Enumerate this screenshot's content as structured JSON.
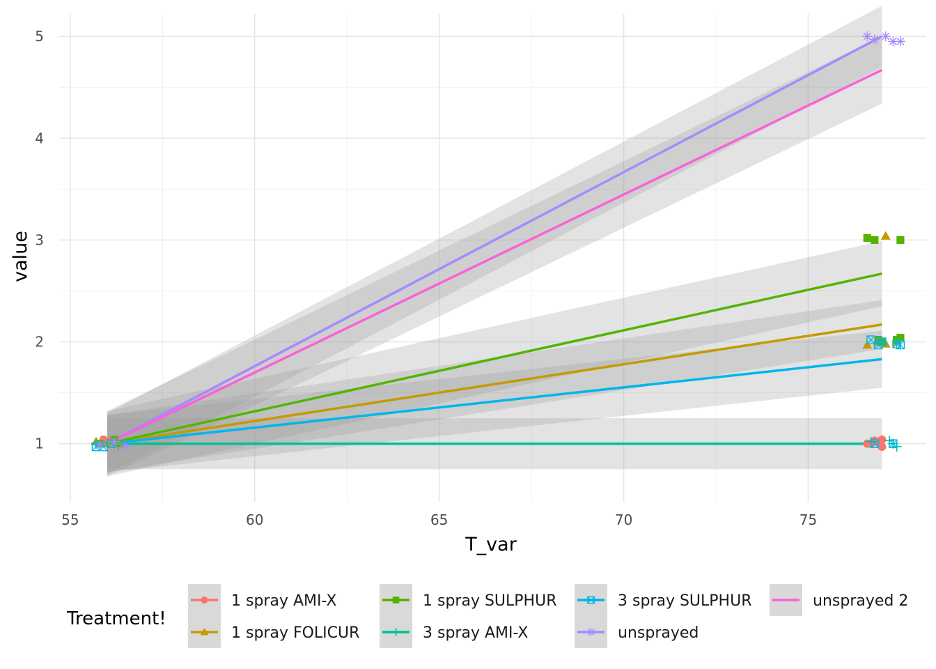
{
  "chart_data": {
    "type": "line",
    "xlabel": "T_var",
    "ylabel": "value",
    "xlim": [
      54.7,
      78.2
    ],
    "ylim": [
      0.43,
      5.22
    ],
    "x_ticks": [
      "55",
      "60",
      "65",
      "70",
      "75"
    ],
    "y_ticks": [
      "1",
      "2",
      "3",
      "4",
      "5"
    ],
    "grid": true,
    "legend": {
      "title": "Treatment!",
      "position": "bottom"
    },
    "fit_x": [
      56,
      77
    ],
    "series": [
      {
        "name": "1 spray AMI-X",
        "color": "#F8766D",
        "marker": "circle",
        "fit": [
          1.0,
          1.0
        ],
        "band_lo": [
          0.75,
          0.75
        ],
        "band_hi": [
          1.25,
          1.25
        ],
        "points": [
          [
            55.9,
            1.04
          ],
          [
            56.1,
            1.03
          ],
          [
            76.6,
            1.0
          ],
          [
            76.7,
            1.0
          ],
          [
            76.8,
            1.03
          ],
          [
            76.9,
            1.01
          ],
          [
            77.0,
            0.97
          ],
          [
            77.0,
            1.04
          ]
        ]
      },
      {
        "name": "1 spray FOLICUR",
        "color": "#C49A00",
        "marker": "triangle",
        "fit": [
          1.0,
          2.17
        ],
        "band_lo": [
          0.72,
          1.93
        ],
        "band_hi": [
          1.28,
          2.41
        ],
        "points": [
          [
            55.7,
            1.02
          ],
          [
            56.0,
            1.0
          ],
          [
            56.3,
            1.0
          ],
          [
            76.6,
            1.97
          ],
          [
            76.9,
            2.0
          ],
          [
            77.1,
            3.04
          ],
          [
            77.1,
            1.98
          ],
          [
            77.4,
            2.0
          ]
        ]
      },
      {
        "name": "1 spray SULPHUR",
        "color": "#53B400",
        "marker": "square",
        "fit": [
          1.0,
          2.67
        ],
        "band_lo": [
          0.68,
          2.35
        ],
        "band_hi": [
          1.32,
          2.99
        ],
        "points": [
          [
            55.8,
            1.0
          ],
          [
            56.2,
            1.04
          ],
          [
            76.6,
            3.02
          ],
          [
            76.8,
            3.0
          ],
          [
            76.9,
            2.02
          ],
          [
            77.0,
            2.0
          ],
          [
            77.5,
            3.0
          ],
          [
            77.5,
            2.04
          ],
          [
            77.4,
            2.02
          ]
        ]
      },
      {
        "name": "3 spray AMI-X",
        "color": "#00C094",
        "marker": "plus",
        "fit": [
          1.0,
          1.0
        ],
        "band_lo": [
          1.0,
          1.0
        ],
        "band_hi": [
          1.0,
          1.0
        ],
        "points": [
          [
            55.7,
            1.0
          ],
          [
            56.3,
            0.98
          ],
          [
            76.7,
            1.02
          ],
          [
            77.2,
            1.03
          ],
          [
            77.4,
            0.97
          ],
          [
            77.3,
            1.0
          ]
        ]
      },
      {
        "name": "3 spray SULPHUR",
        "color": "#00B6EB",
        "marker": "square-x",
        "fit": [
          1.0,
          1.83
        ],
        "band_lo": [
          0.72,
          1.55
        ],
        "band_hi": [
          1.28,
          2.11
        ],
        "points": [
          [
            55.7,
            0.97
          ],
          [
            55.9,
            0.97
          ],
          [
            56.1,
            1.0
          ],
          [
            76.7,
            2.02
          ],
          [
            76.9,
            1.97
          ],
          [
            76.8,
            1.0
          ],
          [
            77.3,
            1.0
          ],
          [
            77.4,
            1.98
          ],
          [
            77.5,
            1.97
          ],
          [
            77.0,
            2.0
          ]
        ]
      },
      {
        "name": "unsprayed",
        "color": "#A58AFF",
        "marker": "asterisk",
        "fit": [
          1.0,
          5.0
        ],
        "band_lo": [
          0.7,
          4.7
        ],
        "band_hi": [
          1.3,
          5.3
        ],
        "points": [
          [
            55.8,
            0.99
          ],
          [
            56.2,
            1.02
          ],
          [
            56.5,
            0.98
          ],
          [
            76.6,
            5.0
          ],
          [
            76.8,
            4.97
          ],
          [
            77.1,
            5.0
          ],
          [
            77.3,
            4.95
          ],
          [
            77.5,
            4.95
          ]
        ]
      },
      {
        "name": "unsprayed 2",
        "color": "#FB61D7",
        "marker": "none",
        "fit": [
          1.0,
          4.67
        ],
        "band_lo": [
          0.68,
          4.34
        ],
        "band_hi": [
          1.32,
          5.0
        ],
        "points": []
      }
    ]
  }
}
